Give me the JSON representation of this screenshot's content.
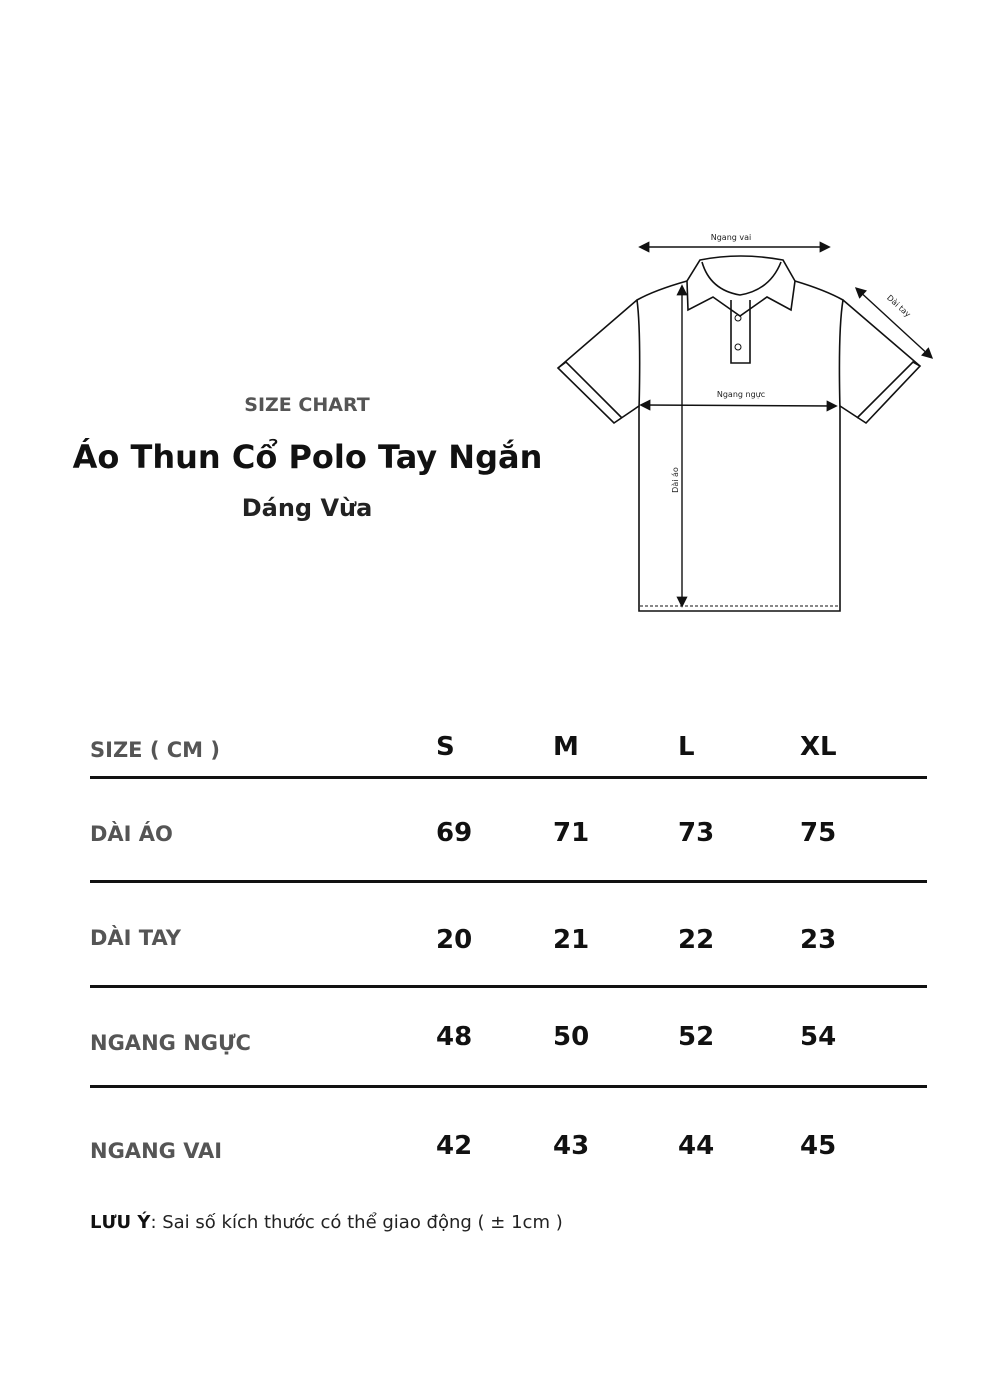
{
  "header": {
    "kicker": "SIZE CHART",
    "title": "Áo Thun Cổ Polo Tay Ngắn",
    "subtitle": "Dáng Vừa"
  },
  "diagram": {
    "shoulder_label": "Ngang vai",
    "sleeve_label": "Dài tay",
    "chest_label": "Ngang ngực",
    "length_label": "Dài áo"
  },
  "table": {
    "header_label": "SIZE ( CM )",
    "sizes": [
      "S",
      "M",
      "L",
      "XL"
    ],
    "rows": [
      {
        "label": "DÀI ÁO",
        "values": [
          "69",
          "71",
          "73",
          "75"
        ]
      },
      {
        "label": "DÀI TAY",
        "values": [
          "20",
          "21",
          "22",
          "23"
        ]
      },
      {
        "label": "NGANG NGỰC",
        "values": [
          "48",
          "50",
          "52",
          "54"
        ]
      },
      {
        "label": "NGANG VAI",
        "values": [
          "42",
          "43",
          "44",
          "45"
        ]
      }
    ]
  },
  "note": {
    "prefix": "LƯU Ý",
    "text": ": Sai số kích thước có thể giao động ( ± 1cm )"
  }
}
